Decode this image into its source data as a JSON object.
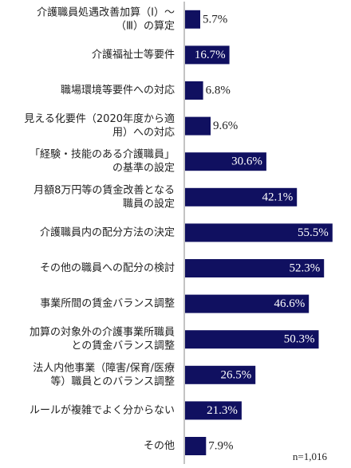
{
  "chart_data": {
    "type": "bar",
    "orientation": "horizontal",
    "categories": [
      [
        "介護職員処遇改善加算（Ⅰ）～",
        "（Ⅲ）の算定"
      ],
      [
        "介護福祉士等要件"
      ],
      [
        "職場環境等要件への対応"
      ],
      [
        "見える化要件（2020年度から適",
        "用）への対応"
      ],
      [
        "「経験・技能のある介護職員」",
        "の基準の設定"
      ],
      [
        "月額8万円等の賃金改善となる",
        "職員の設定"
      ],
      [
        "介護職員内の配分方法の決定"
      ],
      [
        "その他の職員への配分の検討"
      ],
      [
        "事業所間の賃金バランス調整"
      ],
      [
        "加算の対象外の介護事業所職員",
        "との賃金バランス調整"
      ],
      [
        "法人内他事業（障害/保育/医療",
        "等）職員とのバランス調整"
      ],
      [
        "ルールが複雑でよく分からない"
      ],
      [
        "その他"
      ]
    ],
    "values": [
      5.7,
      16.7,
      6.8,
      9.6,
      30.6,
      42.1,
      55.5,
      52.3,
      46.6,
      50.3,
      26.5,
      21.3,
      7.9
    ],
    "value_labels": [
      "5.7%",
      "16.7%",
      "6.8%",
      "9.6%",
      "30.6%",
      "42.1%",
      "55.5%",
      "52.3%",
      "46.6%",
      "50.3%",
      "26.5%",
      "21.3%",
      "7.9%"
    ],
    "xlim": [
      0,
      60
    ],
    "grid": false,
    "bar_color": "#101060",
    "label_inside_color": "#ffffff",
    "label_outside_color": "#222222",
    "note": "n=1,016"
  }
}
